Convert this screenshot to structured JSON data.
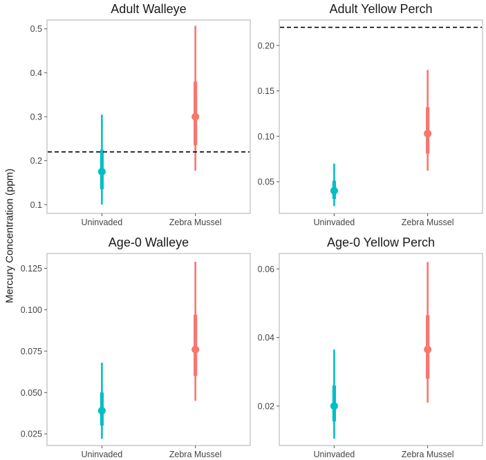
{
  "figure": {
    "ylabel": "Mercury Concentration (ppm)",
    "colors": {
      "uninvaded": "#00BFC4",
      "zebra": "#F8766D",
      "reference": "#000000"
    }
  },
  "chart_data": [
    {
      "type": "pointrange",
      "title": "Adult Walleye",
      "categories": [
        "Uninvaded",
        "Zebra Mussel"
      ],
      "ylim": [
        0.08,
        0.52
      ],
      "yticks": [
        0.1,
        0.2,
        0.3,
        0.4,
        0.5
      ],
      "ytick_labels": [
        "0.1",
        "0.2",
        "0.3",
        "0.4",
        "0.5"
      ],
      "points": [
        {
          "category": "Uninvaded",
          "estimate": 0.175,
          "inner": [
            0.135,
            0.225
          ],
          "outer": [
            0.1,
            0.305
          ]
        },
        {
          "category": "Zebra Mussel",
          "estimate": 0.3,
          "inner": [
            0.235,
            0.38
          ],
          "outer": [
            0.177,
            0.507
          ]
        }
      ],
      "reference_line": 0.22
    },
    {
      "type": "pointrange",
      "title": "Adult Yellow Perch",
      "categories": [
        "Uninvaded",
        "Zebra Mussel"
      ],
      "ylim": [
        0.015,
        0.228
      ],
      "yticks": [
        0.05,
        0.1,
        0.15,
        0.2
      ],
      "ytick_labels": [
        "0.05",
        "0.10",
        "0.15",
        "0.20"
      ],
      "points": [
        {
          "category": "Uninvaded",
          "estimate": 0.04,
          "inner": [
            0.031,
            0.051
          ],
          "outer": [
            0.023,
            0.07
          ]
        },
        {
          "category": "Zebra Mussel",
          "estimate": 0.103,
          "inner": [
            0.081,
            0.132
          ],
          "outer": [
            0.062,
            0.173
          ]
        }
      ],
      "reference_line": 0.22
    },
    {
      "type": "pointrange",
      "title": "Age-0 Walleye",
      "categories": [
        "Uninvaded",
        "Zebra Mussel"
      ],
      "ylim": [
        0.018,
        0.134
      ],
      "yticks": [
        0.025,
        0.05,
        0.075,
        0.1,
        0.125
      ],
      "ytick_labels": [
        "0.025",
        "0.050",
        "0.075",
        "0.100",
        "0.125"
      ],
      "points": [
        {
          "category": "Uninvaded",
          "estimate": 0.039,
          "inner": [
            0.03,
            0.05
          ],
          "outer": [
            0.022,
            0.068
          ]
        },
        {
          "category": "Zebra Mussel",
          "estimate": 0.076,
          "inner": [
            0.06,
            0.097
          ],
          "outer": [
            0.045,
            0.129
          ]
        }
      ]
    },
    {
      "type": "pointrange",
      "title": "Age-0 Yellow Perch",
      "categories": [
        "Uninvaded",
        "Zebra Mussel"
      ],
      "ylim": [
        0.0085,
        0.0645
      ],
      "yticks": [
        0.02,
        0.04,
        0.06
      ],
      "ytick_labels": [
        "0.02",
        "0.04",
        "0.06"
      ],
      "points": [
        {
          "category": "Uninvaded",
          "estimate": 0.02,
          "inner": [
            0.0155,
            0.026
          ],
          "outer": [
            0.0105,
            0.0365
          ]
        },
        {
          "category": "Zebra Mussel",
          "estimate": 0.0365,
          "inner": [
            0.028,
            0.0465
          ],
          "outer": [
            0.021,
            0.062
          ]
        }
      ]
    }
  ]
}
